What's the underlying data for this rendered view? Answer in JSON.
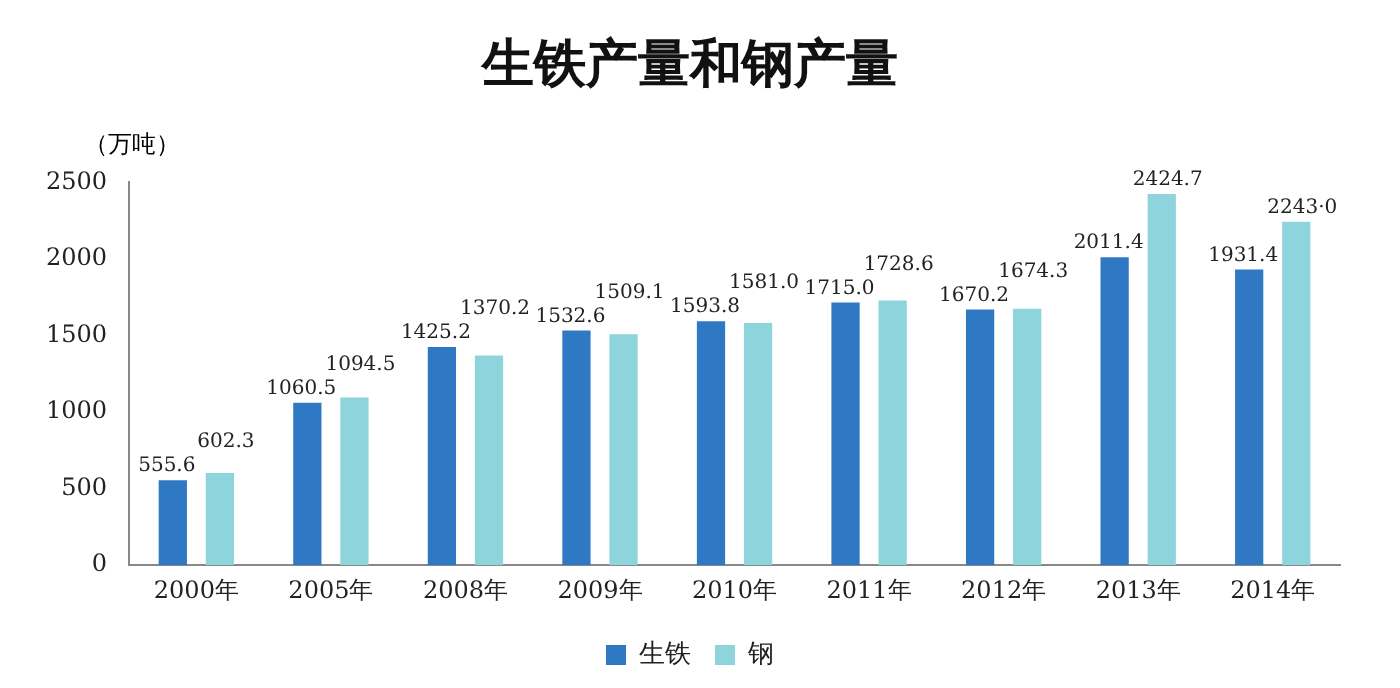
{
  "chart_data": {
    "type": "bar",
    "title": "生铁产量和钢产量",
    "ylabel": "（万吨）",
    "categories": [
      "2000年",
      "2005年",
      "2008年",
      "2009年",
      "2010年",
      "2011年",
      "2012年",
      "2013年",
      "2014年"
    ],
    "series": [
      {
        "name": "生铁",
        "color": "#2f78c4",
        "values": [
          555.6,
          1060.5,
          1425.2,
          1532.6,
          1593.8,
          1715.0,
          1670.2,
          2011.4,
          1931.4
        ],
        "value_labels": [
          "555.6",
          "1060.5",
          "1425.2",
          "1532.6",
          "1593.8",
          "1715.0",
          "1670.2",
          "2011.4",
          "1931.4"
        ]
      },
      {
        "name": "钢",
        "color": "#8ed4dc",
        "values": [
          602.3,
          1094.5,
          1370.2,
          1509.1,
          1581.0,
          1728.6,
          1674.3,
          2424.7,
          2243.0
        ],
        "value_labels": [
          "602.3",
          "1094.5",
          "1370.2",
          "1509.1",
          "1581.0",
          "1728.6",
          "1674.3",
          "2424.7",
          "2243·0"
        ]
      }
    ],
    "ylim": [
      0,
      2500
    ],
    "yticks": [
      0,
      500,
      1000,
      1500,
      2000,
      2500
    ],
    "grid": false,
    "legend": "bottom"
  }
}
